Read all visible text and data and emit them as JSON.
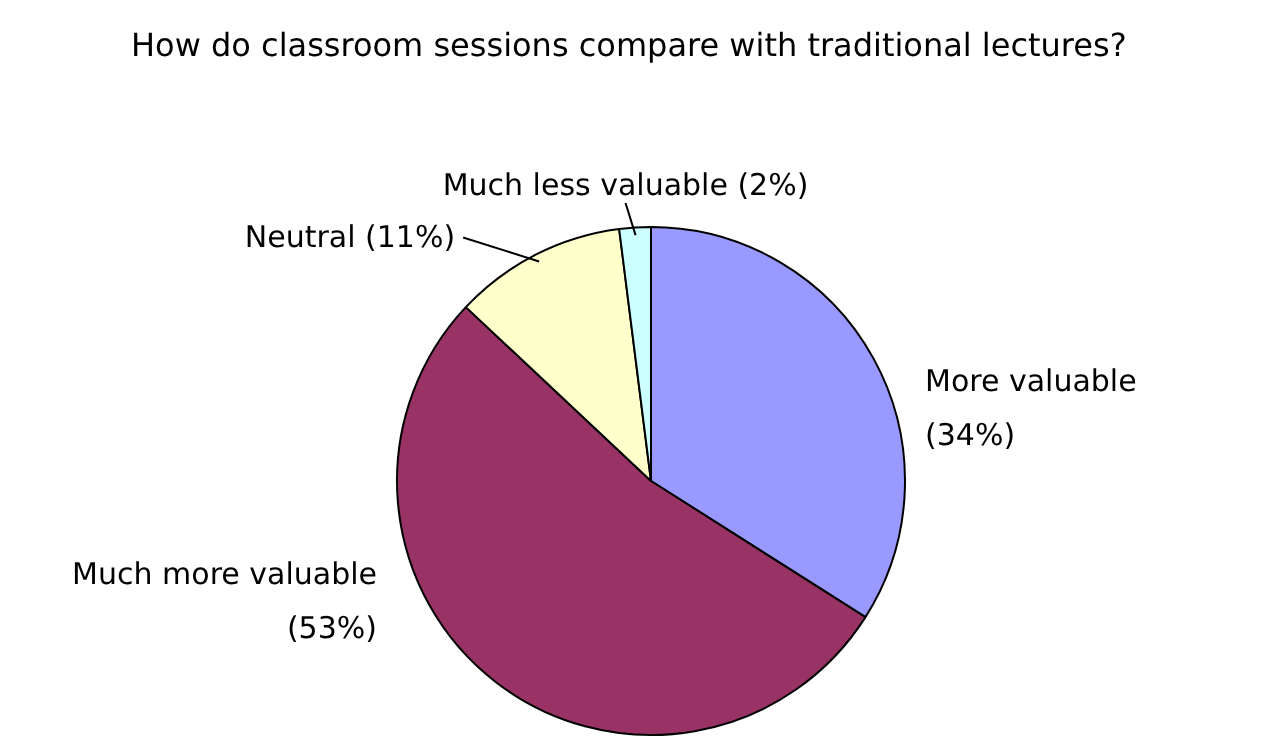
{
  "chart_data": {
    "type": "pie",
    "title": "How do classroom sessions compare with traditional lectures?",
    "categories": [
      "More valuable",
      "Much more valuable",
      "Neutral",
      "Much less valuable"
    ],
    "values": [
      34,
      53,
      11,
      2
    ],
    "value_labels": [
      "(34%)",
      "(53%)",
      "(11%)",
      "(2%)"
    ],
    "colors": [
      "#9999ff",
      "#993366",
      "#ffffcc",
      "#ccffff"
    ]
  }
}
